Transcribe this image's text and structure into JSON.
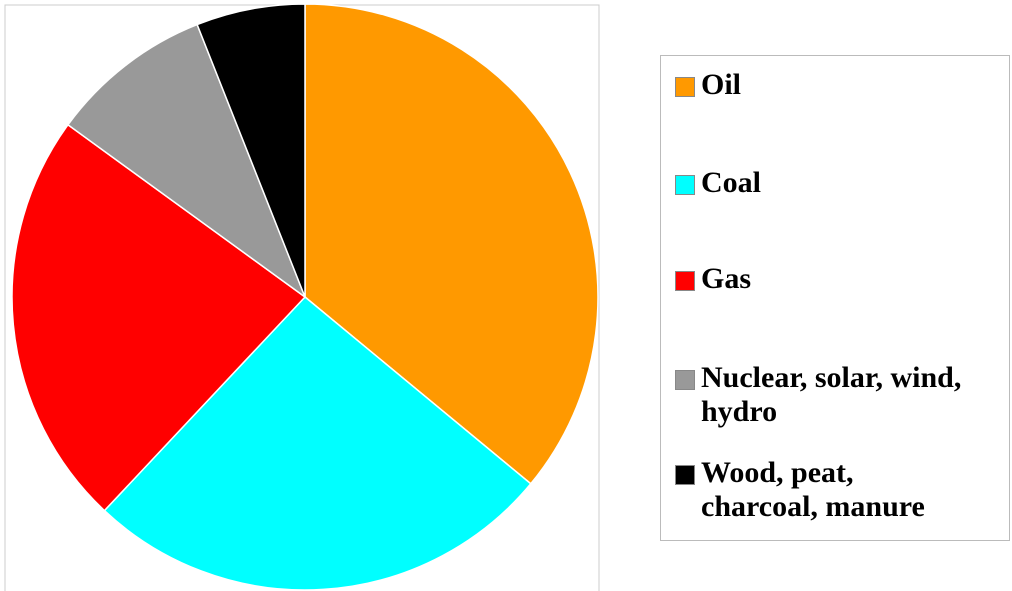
{
  "chart_data": {
    "type": "pie",
    "categories": [
      "Oil",
      "Coal",
      "Gas",
      "Nuclear, solar, wind, hydro",
      "Wood, peat, charcoal, manure"
    ],
    "values": [
      36,
      26,
      23,
      9,
      6
    ],
    "colors": [
      "#ff9900",
      "#00ffff",
      "#ff0000",
      "#999999",
      "#000000"
    ]
  }
}
